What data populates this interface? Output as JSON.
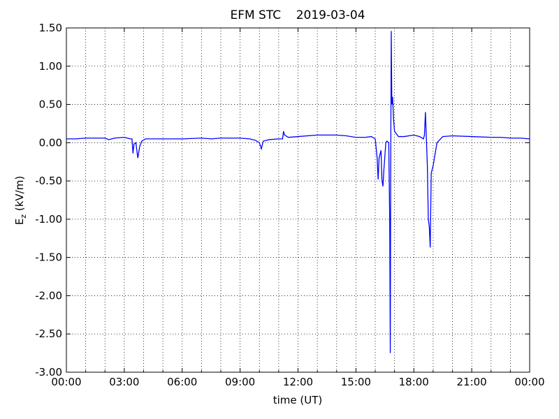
{
  "chart_data": {
    "type": "line",
    "title": "EFM STC    2019-03-04",
    "xlabel": "time (UT)",
    "ylabel": {
      "main": "E",
      "sub": "z",
      "unit": " (kV/m)"
    },
    "xlim": [
      0,
      24
    ],
    "xticks": [
      {
        "value": 0,
        "label": "00:00"
      },
      {
        "value": 3,
        "label": "03:00"
      },
      {
        "value": 6,
        "label": "06:00"
      },
      {
        "value": 9,
        "label": "09:00"
      },
      {
        "value": 12,
        "label": "12:00"
      },
      {
        "value": 15,
        "label": "15:00"
      },
      {
        "value": 18,
        "label": "18:00"
      },
      {
        "value": 21,
        "label": "21:00"
      },
      {
        "value": 24,
        "label": "00:00"
      }
    ],
    "xminor": [
      1,
      2,
      4,
      5,
      7,
      8,
      10,
      11,
      13,
      14,
      16,
      17,
      19,
      20,
      22,
      23
    ],
    "ylim": [
      -3,
      1.5
    ],
    "yticks": [
      {
        "value": -3,
        "label": "-3.00"
      },
      {
        "value": -2.5,
        "label": "-2.50"
      },
      {
        "value": -2,
        "label": "-2.00"
      },
      {
        "value": -1.5,
        "label": "-1.50"
      },
      {
        "value": -1,
        "label": "-1.00"
      },
      {
        "value": -0.5,
        "label": "-0.50"
      },
      {
        "value": 0,
        "label": "0.00"
      },
      {
        "value": 0.5,
        "label": "0.50"
      },
      {
        "value": 1,
        "label": "1.00"
      },
      {
        "value": 1.5,
        "label": "1.50"
      }
    ],
    "grid": true,
    "series": [
      {
        "color": "#0000ff",
        "x": [
          0,
          0.5,
          1,
          1.5,
          2,
          2.2,
          2.5,
          3,
          3.3,
          3.4,
          3.45,
          3.5,
          3.6,
          3.7,
          3.8,
          3.9,
          4.1,
          4.5,
          5,
          6,
          7,
          7.5,
          8,
          9,
          9.5,
          9.8,
          10,
          10.1,
          10.2,
          10.5,
          11,
          11.2,
          11.25,
          11.3,
          11.5,
          12,
          13,
          14,
          14.5,
          15,
          15.5,
          15.8,
          16,
          16.1,
          16.15,
          16.2,
          16.3,
          16.35,
          16.4,
          16.45,
          16.55,
          16.6,
          16.7,
          16.75,
          16.78,
          16.8,
          16.83,
          16.86,
          16.9,
          16.95,
          17,
          17.2,
          17.5,
          18,
          18.3,
          18.5,
          18.55,
          18.6,
          18.65,
          18.7,
          18.75,
          18.8,
          18.85,
          18.9,
          19,
          19.2,
          19.5,
          20,
          21,
          22,
          22.5,
          23,
          23.5,
          24
        ],
        "values": [
          0.05,
          0.05,
          0.06,
          0.06,
          0.06,
          0.04,
          0.06,
          0.07,
          0.05,
          0.05,
          -0.14,
          -0.02,
          0,
          -0.2,
          -0.05,
          0.02,
          0.05,
          0.05,
          0.05,
          0.05,
          0.06,
          0.05,
          0.06,
          0.06,
          0.05,
          0.03,
          0,
          -0.08,
          0.02,
          0.04,
          0.05,
          0.05,
          0.15,
          0.1,
          0.07,
          0.08,
          0.1,
          0.1,
          0.09,
          0.07,
          0.07,
          0.08,
          0.05,
          -0.2,
          -0.48,
          -0.2,
          -0.1,
          -0.5,
          -0.57,
          -0.35,
          0,
          0.02,
          0,
          -1,
          -2.75,
          -0.5,
          1.46,
          0.5,
          0.6,
          0.3,
          0.15,
          0.08,
          0.08,
          0.1,
          0.08,
          0.05,
          0.1,
          0.4,
          0.05,
          -0.3,
          -1,
          -1.1,
          -1.37,
          -0.4,
          -0.3,
          0,
          0.08,
          0.09,
          0.08,
          0.07,
          0.07,
          0.06,
          0.06,
          0.05
        ]
      }
    ]
  }
}
